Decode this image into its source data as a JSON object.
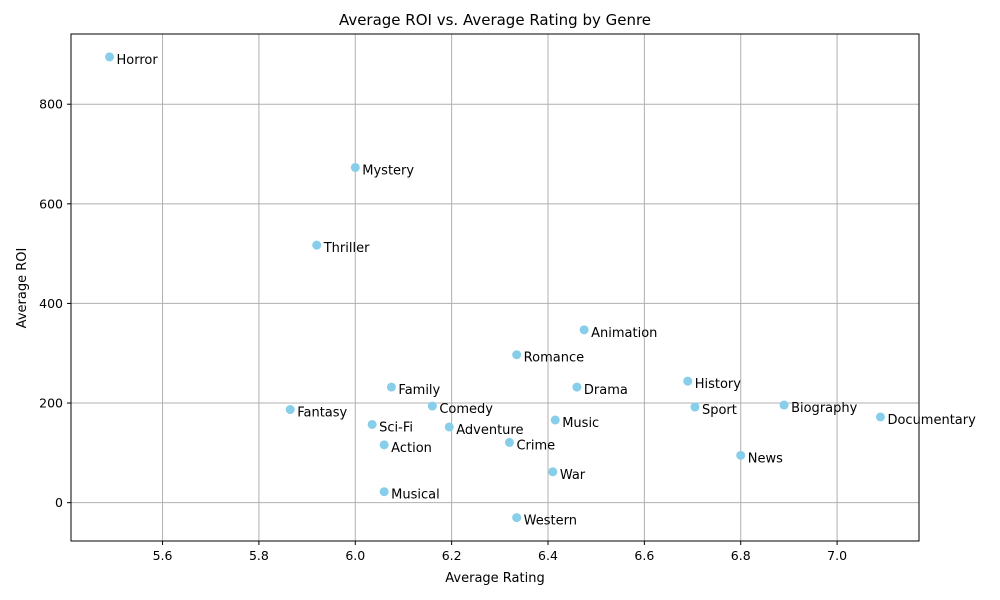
{
  "chart_data": {
    "type": "scatter",
    "title": "Average ROI vs. Average Rating by Genre",
    "xlabel": "Average Rating",
    "ylabel": "Average ROI",
    "xlim": [
      5.41,
      7.17
    ],
    "ylim": [
      -77,
      941
    ],
    "xticks": [
      5.6,
      5.8,
      6.0,
      6.2,
      6.4,
      6.6,
      6.8,
      7.0
    ],
    "xtick_labels": [
      "5.6",
      "5.8",
      "6.0",
      "6.2",
      "6.4",
      "6.6",
      "6.8",
      "7.0"
    ],
    "yticks": [
      0,
      200,
      400,
      600,
      800
    ],
    "ytick_labels": [
      "0",
      "200",
      "400",
      "600",
      "800"
    ],
    "grid": true,
    "marker_color": "#87ceeb",
    "points": [
      {
        "label": "Horror",
        "x": 5.49,
        "y": 895
      },
      {
        "label": "Mystery",
        "x": 6.0,
        "y": 673
      },
      {
        "label": "Thriller",
        "x": 5.92,
        "y": 517
      },
      {
        "label": "Animation",
        "x": 6.475,
        "y": 347
      },
      {
        "label": "Romance",
        "x": 6.335,
        "y": 297
      },
      {
        "label": "History",
        "x": 6.69,
        "y": 244
      },
      {
        "label": "Family",
        "x": 6.075,
        "y": 232
      },
      {
        "label": "Drama",
        "x": 6.46,
        "y": 232
      },
      {
        "label": "Biography",
        "x": 6.89,
        "y": 196
      },
      {
        "label": "Comedy",
        "x": 6.16,
        "y": 194
      },
      {
        "label": "Sport",
        "x": 6.705,
        "y": 192
      },
      {
        "label": "Fantasy",
        "x": 5.865,
        "y": 187
      },
      {
        "label": "Documentary",
        "x": 7.09,
        "y": 172
      },
      {
        "label": "Music",
        "x": 6.415,
        "y": 166
      },
      {
        "label": "Sci-Fi",
        "x": 6.035,
        "y": 157
      },
      {
        "label": "Adventure",
        "x": 6.195,
        "y": 152
      },
      {
        "label": "Crime",
        "x": 6.32,
        "y": 121
      },
      {
        "label": "Action",
        "x": 6.06,
        "y": 116
      },
      {
        "label": "News",
        "x": 6.8,
        "y": 95
      },
      {
        "label": "War",
        "x": 6.41,
        "y": 62
      },
      {
        "label": "Musical",
        "x": 6.06,
        "y": 22
      },
      {
        "label": "Western",
        "x": 6.335,
        "y": -30
      }
    ]
  }
}
